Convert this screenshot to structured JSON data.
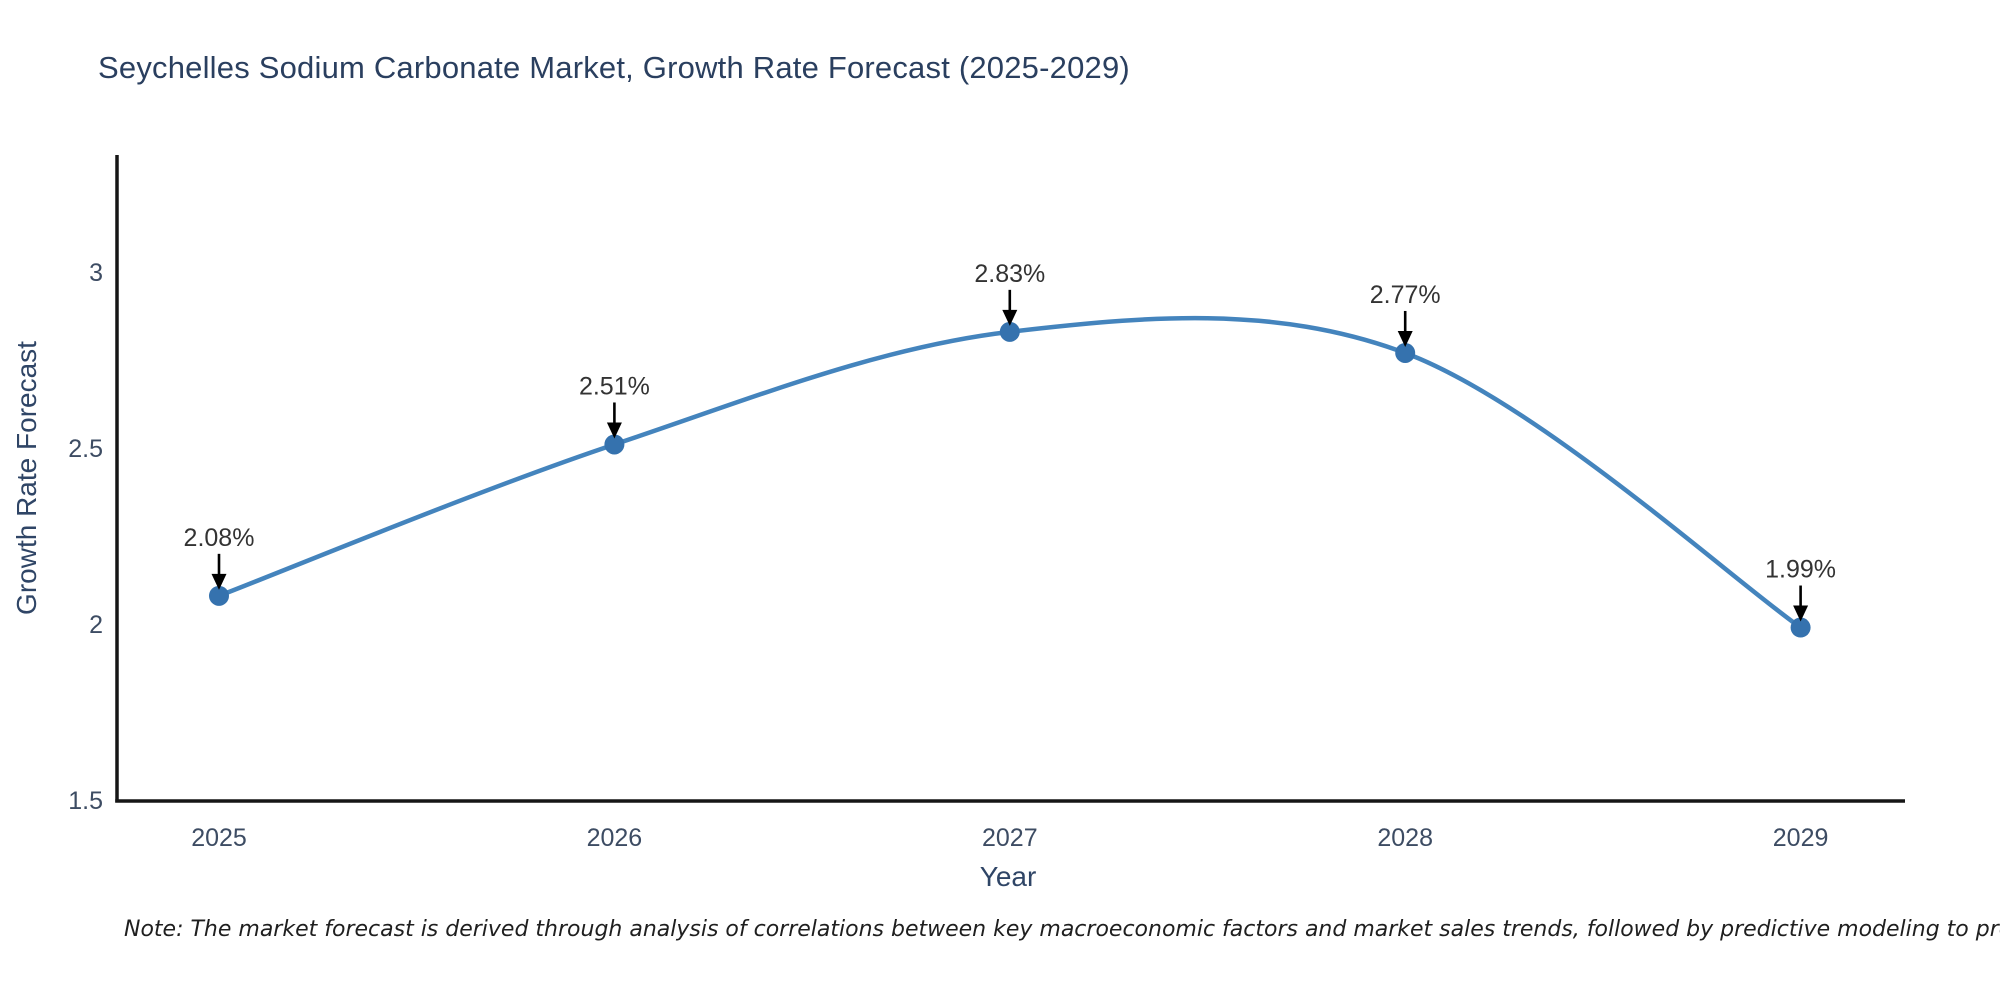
{
  "title": "Seychelles Sodium Carbonate Market, Growth Rate Forecast (2025-2029)",
  "note": "Note: The market forecast is derived through analysis of correlations between key macroeconomic factors and market sales trends, followed by predictive modeling to project future sales",
  "chart_data": {
    "type": "line",
    "title": "Seychelles Sodium Carbonate Market, Growth Rate Forecast (2025-2029)",
    "xlabel": "Year",
    "ylabel": "Growth Rate Forecast",
    "x": [
      2025,
      2026,
      2027,
      2028,
      2029
    ],
    "y": [
      2.08,
      2.51,
      2.83,
      2.77,
      1.99
    ],
    "point_labels": [
      "2.08%",
      "2.51%",
      "2.83%",
      "2.77%",
      "1.99%"
    ],
    "x_tick_labels": [
      "2025",
      "2026",
      "2027",
      "2028",
      "2029"
    ],
    "y_tick_values": [
      1.5,
      2,
      2.5,
      3
    ],
    "y_tick_labels": [
      "1.5",
      "2",
      "2.5",
      "3"
    ],
    "ylim": [
      1.5,
      3.33
    ],
    "xlim": [
      2024.74,
      2029.27
    ],
    "line_shape": "spline",
    "grid": false,
    "legend": "none",
    "colors": {
      "line": "#4484bd",
      "marker": "#3572ae",
      "axis_line": "#161616",
      "title_text": "#2a3f5f",
      "axis_title_text": "#2f4566",
      "tick_text": "#3d4c63",
      "annotation_text": "#333333",
      "arrow": "#000000",
      "background": "#ffffff"
    }
  }
}
